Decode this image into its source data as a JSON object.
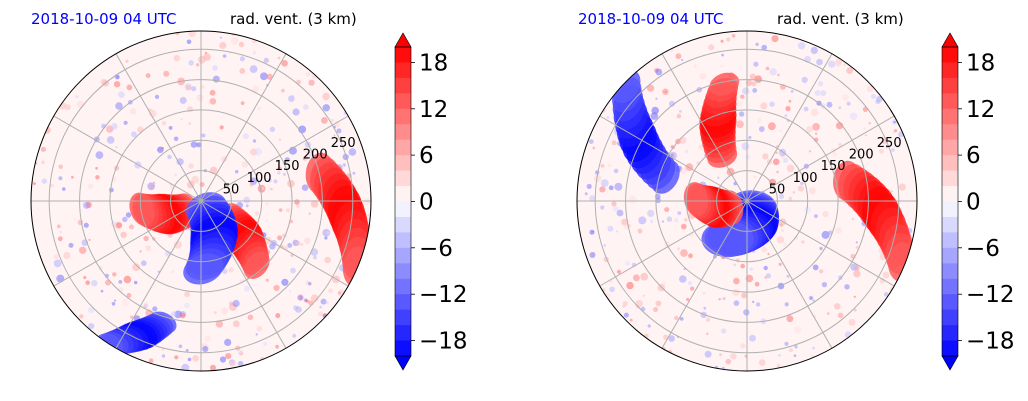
{
  "chart_data": [
    {
      "type": "heatmap",
      "projection": "polar",
      "title_left": "2018-10-09 04 UTC",
      "title_right": "rad. vent. (3 km)",
      "radial_ticks": [
        "50",
        "100",
        "150",
        "200",
        "250"
      ],
      "radial_range": [
        0,
        280
      ],
      "grid": true,
      "colorbar": {
        "ticks": [
          "18",
          "12",
          "6",
          "0",
          "−6",
          "−12",
          "−18"
        ],
        "range": [
          -20,
          20
        ],
        "extend": "both",
        "cmap": "bwr"
      },
      "field_features": [
        {
          "sign": "positive",
          "azimuth_deg": 5,
          "r_frac": [
            0.72,
            1.0
          ],
          "width_deg": 60
        },
        {
          "sign": "positive",
          "azimuth_deg": 40,
          "r_frac": [
            0.18,
            0.5
          ],
          "width_deg": 30
        },
        {
          "sign": "positive",
          "azimuth_deg": 160,
          "r_frac": [
            0.1,
            0.35
          ],
          "width_deg": 40
        },
        {
          "sign": "negative",
          "azimuth_deg": 70,
          "r_frac": [
            0.05,
            0.4
          ],
          "width_deg": 60
        },
        {
          "sign": "negative",
          "azimuth_deg": 115,
          "r_frac": [
            0.75,
            1.0
          ],
          "width_deg": 25
        }
      ]
    },
    {
      "type": "heatmap",
      "projection": "polar",
      "title_left": "2018-10-09 04 UTC",
      "title_right": "rad. vent. (3 km)",
      "radial_ticks": [
        "50",
        "100",
        "150",
        "200",
        "250"
      ],
      "radial_range": [
        0,
        280
      ],
      "grid": true,
      "colorbar": {
        "ticks": [
          "18",
          "12",
          "6",
          "0",
          "−6",
          "−12",
          "−18"
        ],
        "range": [
          -20,
          20
        ],
        "extend": "both",
        "cmap": "bwr"
      },
      "field_features": [
        {
          "sign": "negative",
          "azimuth_deg": 210,
          "r_frac": [
            0.5,
            0.98
          ],
          "width_deg": 45
        },
        {
          "sign": "positive",
          "azimuth_deg": 250,
          "r_frac": [
            0.3,
            0.7
          ],
          "width_deg": 30
        },
        {
          "sign": "positive",
          "azimuth_deg": 5,
          "r_frac": [
            0.6,
            0.98
          ],
          "width_deg": 55
        },
        {
          "sign": "negative",
          "azimuth_deg": 90,
          "r_frac": [
            0.05,
            0.25
          ],
          "width_deg": 90
        },
        {
          "sign": "positive",
          "azimuth_deg": 170,
          "r_frac": [
            0.1,
            0.3
          ],
          "width_deg": 40
        }
      ]
    }
  ],
  "colors": {
    "title_left": "#0000ff",
    "positive_max": "#ff0000",
    "negative_max": "#0000ff",
    "grid": "#b0b0b0",
    "background": "#ffffff"
  }
}
